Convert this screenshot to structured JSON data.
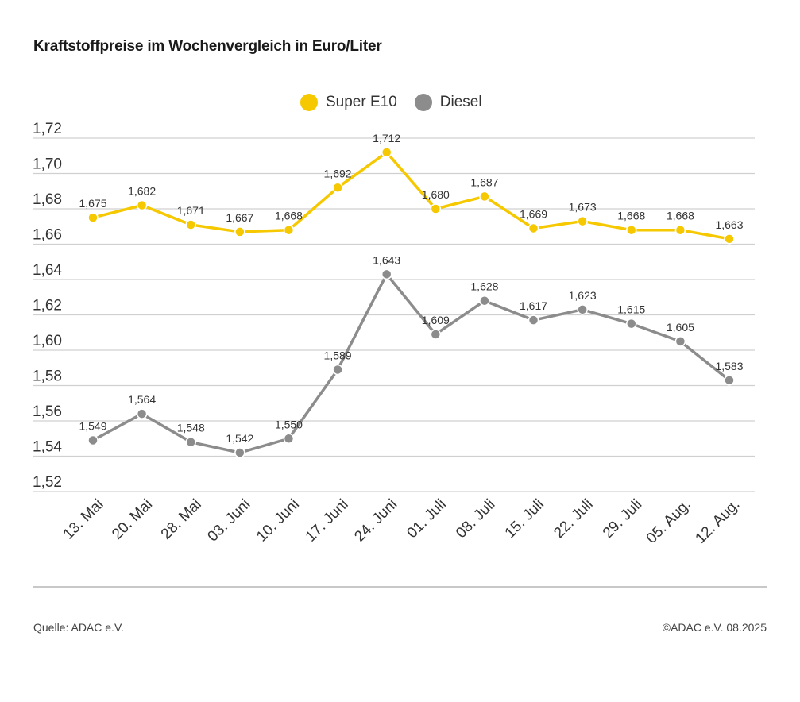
{
  "header": {
    "title": "Kraftstoffpreise im Wochenvergleich in Euro/Liter"
  },
  "footer": {
    "source": "Quelle: ADAC e.V.",
    "copyright": "©ADAC e.V. 08.2025"
  },
  "colors": {
    "super": "#f5c800",
    "diesel": "#8c8c8c",
    "grid": "#d0d0d0"
  },
  "chart_data": {
    "type": "line",
    "title": "Kraftstoffpreise im Wochenvergleich in Euro/Liter",
    "xlabel": "",
    "ylabel": "",
    "categories": [
      "13. Mai",
      "20. Mai",
      "28. Mai",
      "03. Juni",
      "10. Juni",
      "17. Juni",
      "24. Juni",
      "01. Juli",
      "08. Juli",
      "15. Juli",
      "22. Juli",
      "29. Juli",
      "05. Aug.",
      "12. Aug."
    ],
    "ylim": [
      1.52,
      1.72
    ],
    "yticks": [
      "1,52",
      "1,54",
      "1,56",
      "1,58",
      "1,60",
      "1,62",
      "1,64",
      "1,66",
      "1,68",
      "1,70",
      "1,72"
    ],
    "grid": true,
    "legend_position": "top-center",
    "series": [
      {
        "name": "Super E10",
        "color": "#f5c800",
        "values": [
          1.675,
          1.682,
          1.671,
          1.667,
          1.668,
          1.692,
          1.712,
          1.68,
          1.687,
          1.669,
          1.673,
          1.668,
          1.668,
          1.663
        ],
        "labels": [
          "1,675",
          "1,682",
          "1,671",
          "1,667",
          "1,668",
          "1,692",
          "1,712",
          "1,680",
          "1,687",
          "1,669",
          "1,673",
          "1,668",
          "1,668",
          "1,663"
        ]
      },
      {
        "name": "Diesel",
        "color": "#8c8c8c",
        "values": [
          1.549,
          1.564,
          1.548,
          1.542,
          1.55,
          1.589,
          1.643,
          1.609,
          1.628,
          1.617,
          1.623,
          1.615,
          1.605,
          1.583
        ],
        "labels": [
          "1,549",
          "1,564",
          "1,548",
          "1,542",
          "1,550",
          "1,589",
          "1,643",
          "1,609",
          "1,628",
          "1,617",
          "1,623",
          "1,615",
          "1,605",
          "1,583"
        ]
      }
    ]
  }
}
